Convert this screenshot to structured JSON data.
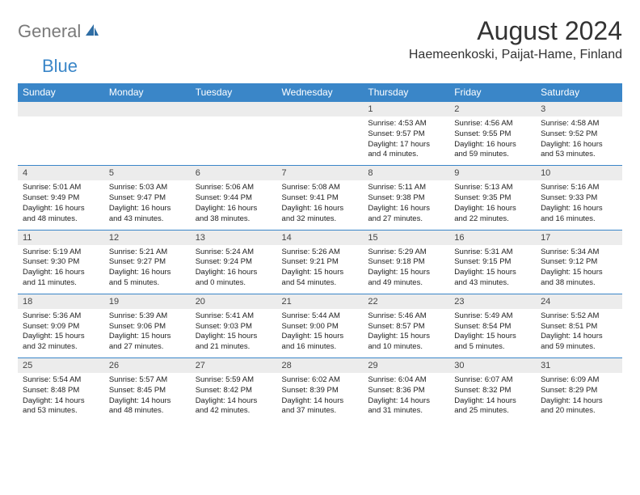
{
  "logo": {
    "part1": "General",
    "part2": "Blue"
  },
  "title": "August 2024",
  "location": "Haemeenkoski, Paijat-Hame, Finland",
  "colors": {
    "header_bg": "#3a86c8",
    "header_text": "#ffffff",
    "numrow_bg": "#ececec",
    "border": "#3a86c8"
  },
  "day_labels": [
    "Sunday",
    "Monday",
    "Tuesday",
    "Wednesday",
    "Thursday",
    "Friday",
    "Saturday"
  ],
  "weeks": [
    {
      "nums": [
        "",
        "",
        "",
        "",
        "1",
        "2",
        "3"
      ],
      "cells": [
        null,
        null,
        null,
        null,
        {
          "sunrise": "Sunrise: 4:53 AM",
          "sunset": "Sunset: 9:57 PM",
          "daylight": "Daylight: 17 hours and 4 minutes."
        },
        {
          "sunrise": "Sunrise: 4:56 AM",
          "sunset": "Sunset: 9:55 PM",
          "daylight": "Daylight: 16 hours and 59 minutes."
        },
        {
          "sunrise": "Sunrise: 4:58 AM",
          "sunset": "Sunset: 9:52 PM",
          "daylight": "Daylight: 16 hours and 53 minutes."
        }
      ]
    },
    {
      "nums": [
        "4",
        "5",
        "6",
        "7",
        "8",
        "9",
        "10"
      ],
      "cells": [
        {
          "sunrise": "Sunrise: 5:01 AM",
          "sunset": "Sunset: 9:49 PM",
          "daylight": "Daylight: 16 hours and 48 minutes."
        },
        {
          "sunrise": "Sunrise: 5:03 AM",
          "sunset": "Sunset: 9:47 PM",
          "daylight": "Daylight: 16 hours and 43 minutes."
        },
        {
          "sunrise": "Sunrise: 5:06 AM",
          "sunset": "Sunset: 9:44 PM",
          "daylight": "Daylight: 16 hours and 38 minutes."
        },
        {
          "sunrise": "Sunrise: 5:08 AM",
          "sunset": "Sunset: 9:41 PM",
          "daylight": "Daylight: 16 hours and 32 minutes."
        },
        {
          "sunrise": "Sunrise: 5:11 AM",
          "sunset": "Sunset: 9:38 PM",
          "daylight": "Daylight: 16 hours and 27 minutes."
        },
        {
          "sunrise": "Sunrise: 5:13 AM",
          "sunset": "Sunset: 9:35 PM",
          "daylight": "Daylight: 16 hours and 22 minutes."
        },
        {
          "sunrise": "Sunrise: 5:16 AM",
          "sunset": "Sunset: 9:33 PM",
          "daylight": "Daylight: 16 hours and 16 minutes."
        }
      ]
    },
    {
      "nums": [
        "11",
        "12",
        "13",
        "14",
        "15",
        "16",
        "17"
      ],
      "cells": [
        {
          "sunrise": "Sunrise: 5:19 AM",
          "sunset": "Sunset: 9:30 PM",
          "daylight": "Daylight: 16 hours and 11 minutes."
        },
        {
          "sunrise": "Sunrise: 5:21 AM",
          "sunset": "Sunset: 9:27 PM",
          "daylight": "Daylight: 16 hours and 5 minutes."
        },
        {
          "sunrise": "Sunrise: 5:24 AM",
          "sunset": "Sunset: 9:24 PM",
          "daylight": "Daylight: 16 hours and 0 minutes."
        },
        {
          "sunrise": "Sunrise: 5:26 AM",
          "sunset": "Sunset: 9:21 PM",
          "daylight": "Daylight: 15 hours and 54 minutes."
        },
        {
          "sunrise": "Sunrise: 5:29 AM",
          "sunset": "Sunset: 9:18 PM",
          "daylight": "Daylight: 15 hours and 49 minutes."
        },
        {
          "sunrise": "Sunrise: 5:31 AM",
          "sunset": "Sunset: 9:15 PM",
          "daylight": "Daylight: 15 hours and 43 minutes."
        },
        {
          "sunrise": "Sunrise: 5:34 AM",
          "sunset": "Sunset: 9:12 PM",
          "daylight": "Daylight: 15 hours and 38 minutes."
        }
      ]
    },
    {
      "nums": [
        "18",
        "19",
        "20",
        "21",
        "22",
        "23",
        "24"
      ],
      "cells": [
        {
          "sunrise": "Sunrise: 5:36 AM",
          "sunset": "Sunset: 9:09 PM",
          "daylight": "Daylight: 15 hours and 32 minutes."
        },
        {
          "sunrise": "Sunrise: 5:39 AM",
          "sunset": "Sunset: 9:06 PM",
          "daylight": "Daylight: 15 hours and 27 minutes."
        },
        {
          "sunrise": "Sunrise: 5:41 AM",
          "sunset": "Sunset: 9:03 PM",
          "daylight": "Daylight: 15 hours and 21 minutes."
        },
        {
          "sunrise": "Sunrise: 5:44 AM",
          "sunset": "Sunset: 9:00 PM",
          "daylight": "Daylight: 15 hours and 16 minutes."
        },
        {
          "sunrise": "Sunrise: 5:46 AM",
          "sunset": "Sunset: 8:57 PM",
          "daylight": "Daylight: 15 hours and 10 minutes."
        },
        {
          "sunrise": "Sunrise: 5:49 AM",
          "sunset": "Sunset: 8:54 PM",
          "daylight": "Daylight: 15 hours and 5 minutes."
        },
        {
          "sunrise": "Sunrise: 5:52 AM",
          "sunset": "Sunset: 8:51 PM",
          "daylight": "Daylight: 14 hours and 59 minutes."
        }
      ]
    },
    {
      "nums": [
        "25",
        "26",
        "27",
        "28",
        "29",
        "30",
        "31"
      ],
      "cells": [
        {
          "sunrise": "Sunrise: 5:54 AM",
          "sunset": "Sunset: 8:48 PM",
          "daylight": "Daylight: 14 hours and 53 minutes."
        },
        {
          "sunrise": "Sunrise: 5:57 AM",
          "sunset": "Sunset: 8:45 PM",
          "daylight": "Daylight: 14 hours and 48 minutes."
        },
        {
          "sunrise": "Sunrise: 5:59 AM",
          "sunset": "Sunset: 8:42 PM",
          "daylight": "Daylight: 14 hours and 42 minutes."
        },
        {
          "sunrise": "Sunrise: 6:02 AM",
          "sunset": "Sunset: 8:39 PM",
          "daylight": "Daylight: 14 hours and 37 minutes."
        },
        {
          "sunrise": "Sunrise: 6:04 AM",
          "sunset": "Sunset: 8:36 PM",
          "daylight": "Daylight: 14 hours and 31 minutes."
        },
        {
          "sunrise": "Sunrise: 6:07 AM",
          "sunset": "Sunset: 8:32 PM",
          "daylight": "Daylight: 14 hours and 25 minutes."
        },
        {
          "sunrise": "Sunrise: 6:09 AM",
          "sunset": "Sunset: 8:29 PM",
          "daylight": "Daylight: 14 hours and 20 minutes."
        }
      ]
    }
  ]
}
